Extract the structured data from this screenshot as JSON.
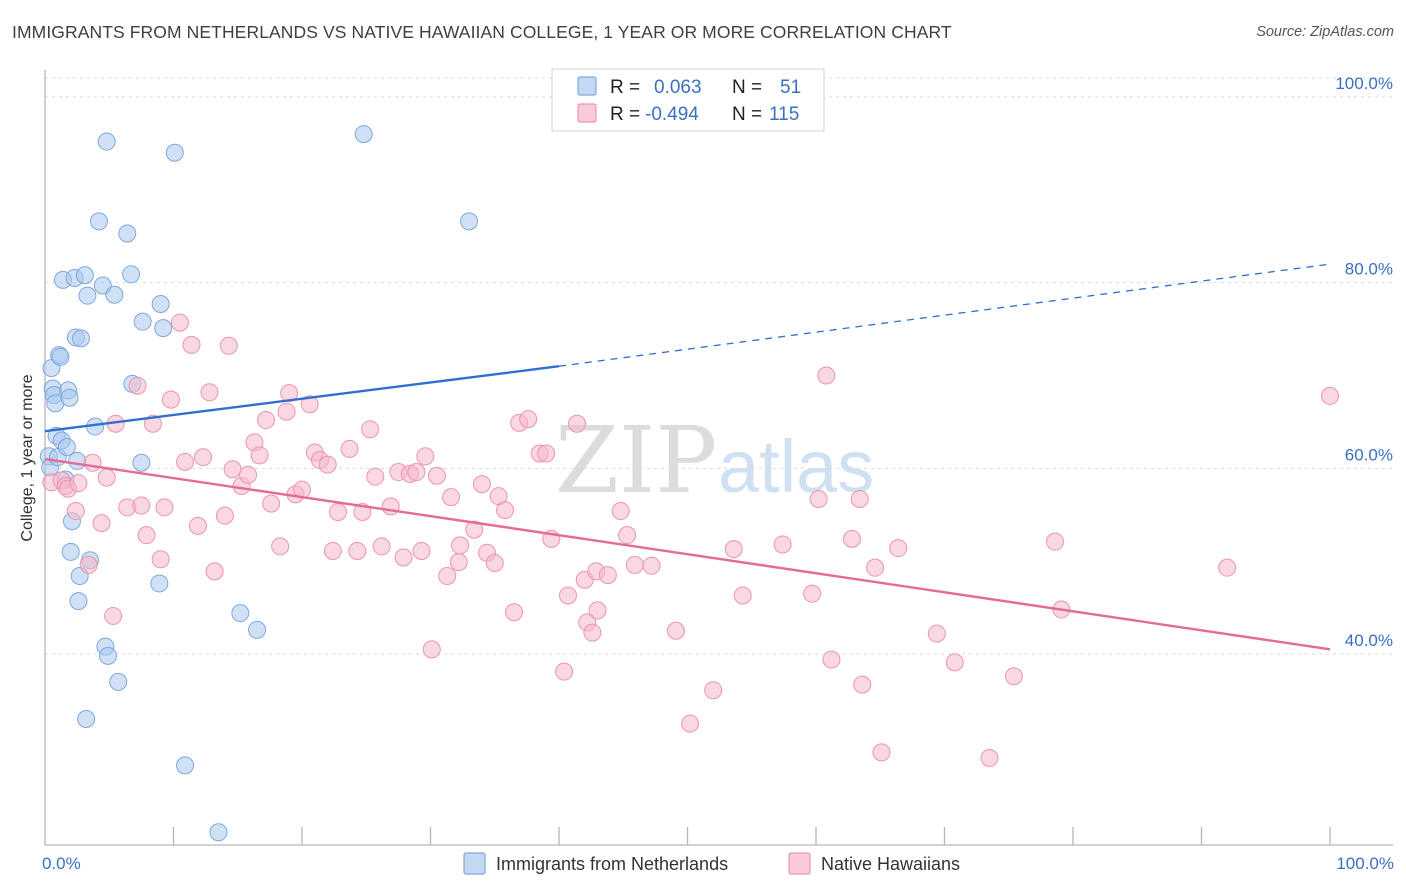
{
  "title": "IMMIGRANTS FROM NETHERLANDS VS NATIVE HAWAIIAN COLLEGE, 1 YEAR OR MORE CORRELATION CHART",
  "source": "Source: ZipAtlas.com",
  "watermark": {
    "zip": "ZIP",
    "atlas": "atlas"
  },
  "colors": {
    "blue_fill": "#a9c8ef",
    "blue_stroke": "#7fa8dc",
    "blue_line": "#2f6fcf",
    "pink_fill": "#f6b8cb",
    "pink_stroke": "#ec94b0",
    "pink_line": "#e46b97",
    "accent_text": "#3a70c2",
    "grid": "#d9d9d9"
  },
  "legend": {
    "rows": [
      {
        "r_label": "R =",
        "r_value": "0.063",
        "n_label": "N =",
        "n_value": "51"
      },
      {
        "r_label": "R =",
        "r_value": "-0.494",
        "n_label": "N =",
        "n_value": "115"
      }
    ]
  },
  "bottom_legend": [
    "Immigrants from Netherlands",
    "Native Hawaiians"
  ],
  "chart_data": {
    "type": "scatter",
    "title": "IMMIGRANTS FROM NETHERLANDS VS NATIVE HAWAIIAN COLLEGE, 1 YEAR OR MORE CORRELATION CHART",
    "xlabel": "",
    "ylabel": "College, 1 year or more",
    "xlim": [
      0,
      100
    ],
    "ylim": [
      22,
      104
    ],
    "x_tick_labels": [
      "0.0%",
      "100.0%"
    ],
    "y_ticks": [
      40,
      60,
      80,
      100
    ],
    "y_tick_labels": [
      "40.0%",
      "60.0%",
      "80.0%",
      "100.0%"
    ],
    "series": [
      {
        "name": "Immigrants from Netherlands",
        "R": 0.063,
        "N": 51,
        "trend": {
          "x0": 0,
          "y0": 64.0,
          "x1": 40,
          "y1": 71.0,
          "dash_to_x": 100,
          "dash_to_y": 82.0
        },
        "points": [
          [
            0.3,
            61.3
          ],
          [
            0.4,
            60.1
          ],
          [
            0.5,
            70.8
          ],
          [
            0.6,
            68.6
          ],
          [
            0.7,
            67.9
          ],
          [
            0.8,
            67.0
          ],
          [
            0.9,
            63.5
          ],
          [
            1.0,
            61.2
          ],
          [
            1.1,
            72.2
          ],
          [
            1.2,
            72.0
          ],
          [
            1.3,
            63.0
          ],
          [
            1.4,
            80.3
          ],
          [
            1.6,
            58.8
          ],
          [
            1.7,
            62.3
          ],
          [
            1.8,
            68.4
          ],
          [
            1.9,
            67.6
          ],
          [
            2.0,
            51.0
          ],
          [
            2.1,
            54.3
          ],
          [
            2.3,
            80.5
          ],
          [
            2.4,
            74.1
          ],
          [
            2.5,
            60.8
          ],
          [
            2.6,
            45.7
          ],
          [
            2.7,
            48.4
          ],
          [
            2.8,
            74.0
          ],
          [
            3.1,
            80.8
          ],
          [
            3.2,
            33.0
          ],
          [
            3.3,
            78.6
          ],
          [
            3.5,
            50.1
          ],
          [
            3.9,
            64.5
          ],
          [
            4.2,
            86.6
          ],
          [
            4.5,
            79.7
          ],
          [
            4.7,
            40.8
          ],
          [
            4.8,
            95.2
          ],
          [
            4.9,
            39.8
          ],
          [
            5.4,
            78.7
          ],
          [
            5.7,
            37.0
          ],
          [
            6.4,
            85.3
          ],
          [
            6.7,
            80.9
          ],
          [
            6.8,
            69.1
          ],
          [
            7.5,
            60.6
          ],
          [
            7.6,
            75.8
          ],
          [
            8.9,
            47.6
          ],
          [
            9.0,
            77.7
          ],
          [
            9.2,
            75.1
          ],
          [
            10.1,
            94.0
          ],
          [
            10.9,
            28.0
          ],
          [
            13.5,
            20.8
          ],
          [
            15.2,
            44.4
          ],
          [
            16.5,
            42.6
          ],
          [
            24.8,
            96.0
          ],
          [
            33.0,
            86.6
          ]
        ]
      },
      {
        "name": "Native Hawaiians",
        "R": -0.494,
        "N": 115,
        "trend": {
          "x0": 0,
          "y0": 61.0,
          "x1": 100,
          "y1": 40.5
        },
        "points": [
          [
            0.5,
            58.5
          ],
          [
            1.3,
            58.7
          ],
          [
            1.6,
            58.1
          ],
          [
            1.8,
            57.8
          ],
          [
            2.4,
            55.4
          ],
          [
            2.6,
            58.4
          ],
          [
            3.4,
            49.6
          ],
          [
            3.7,
            60.6
          ],
          [
            4.4,
            54.1
          ],
          [
            4.8,
            59.0
          ],
          [
            5.3,
            44.1
          ],
          [
            5.5,
            64.8
          ],
          [
            6.4,
            55.8
          ],
          [
            7.2,
            68.9
          ],
          [
            7.5,
            56.0
          ],
          [
            7.9,
            52.8
          ],
          [
            8.4,
            64.8
          ],
          [
            9.0,
            50.2
          ],
          [
            9.3,
            55.8
          ],
          [
            9.8,
            67.4
          ],
          [
            10.5,
            75.7
          ],
          [
            10.9,
            60.7
          ],
          [
            11.4,
            73.3
          ],
          [
            11.9,
            53.8
          ],
          [
            12.3,
            61.2
          ],
          [
            12.8,
            68.2
          ],
          [
            13.2,
            48.9
          ],
          [
            14.0,
            54.9
          ],
          [
            14.3,
            73.2
          ],
          [
            14.6,
            59.9
          ],
          [
            15.3,
            58.1
          ],
          [
            15.8,
            59.3
          ],
          [
            16.3,
            62.8
          ],
          [
            16.7,
            61.4
          ],
          [
            17.2,
            65.2
          ],
          [
            17.6,
            56.2
          ],
          [
            18.3,
            51.6
          ],
          [
            18.8,
            66.1
          ],
          [
            19.0,
            68.1
          ],
          [
            19.5,
            57.2
          ],
          [
            20.0,
            57.7
          ],
          [
            20.6,
            66.9
          ],
          [
            21.0,
            61.7
          ],
          [
            21.4,
            60.9
          ],
          [
            22.0,
            60.4
          ],
          [
            22.4,
            51.1
          ],
          [
            22.8,
            55.3
          ],
          [
            23.7,
            62.1
          ],
          [
            24.3,
            51.1
          ],
          [
            24.7,
            55.3
          ],
          [
            25.3,
            64.2
          ],
          [
            25.7,
            59.1
          ],
          [
            26.2,
            51.6
          ],
          [
            26.9,
            55.9
          ],
          [
            27.5,
            59.6
          ],
          [
            27.9,
            50.4
          ],
          [
            28.4,
            59.4
          ],
          [
            28.9,
            59.6
          ],
          [
            29.3,
            51.1
          ],
          [
            29.6,
            61.3
          ],
          [
            30.1,
            40.5
          ],
          [
            30.5,
            59.2
          ],
          [
            31.3,
            48.4
          ],
          [
            31.6,
            56.9
          ],
          [
            32.2,
            49.9
          ],
          [
            32.3,
            51.7
          ],
          [
            33.4,
            53.4
          ],
          [
            34.0,
            58.3
          ],
          [
            34.4,
            50.9
          ],
          [
            35.0,
            49.8
          ],
          [
            35.3,
            57.0
          ],
          [
            35.8,
            55.5
          ],
          [
            36.5,
            44.5
          ],
          [
            36.9,
            64.9
          ],
          [
            37.6,
            65.3
          ],
          [
            38.5,
            61.6
          ],
          [
            39.0,
            61.6
          ],
          [
            39.4,
            52.4
          ],
          [
            40.4,
            38.1
          ],
          [
            40.7,
            46.3
          ],
          [
            41.4,
            64.8
          ],
          [
            42.0,
            48.0
          ],
          [
            42.2,
            43.4
          ],
          [
            42.6,
            42.3
          ],
          [
            42.9,
            48.9
          ],
          [
            43.0,
            44.7
          ],
          [
            43.8,
            48.5
          ],
          [
            44.8,
            55.4
          ],
          [
            45.3,
            52.8
          ],
          [
            45.9,
            49.6
          ],
          [
            47.2,
            49.5
          ],
          [
            49.1,
            42.5
          ],
          [
            50.2,
            32.5
          ],
          [
            52.0,
            36.1
          ],
          [
            53.6,
            51.3
          ],
          [
            54.3,
            46.3
          ],
          [
            57.4,
            51.8
          ],
          [
            59.7,
            46.5
          ],
          [
            60.2,
            56.7
          ],
          [
            60.8,
            70.0
          ],
          [
            61.2,
            39.4
          ],
          [
            62.8,
            52.4
          ],
          [
            63.4,
            56.7
          ],
          [
            63.6,
            36.7
          ],
          [
            64.6,
            49.3
          ],
          [
            65.1,
            29.4
          ],
          [
            66.4,
            51.4
          ],
          [
            69.4,
            42.2
          ],
          [
            70.8,
            39.1
          ],
          [
            73.5,
            28.8
          ],
          [
            75.4,
            37.6
          ],
          [
            78.6,
            52.1
          ],
          [
            79.1,
            44.8
          ],
          [
            92.0,
            49.3
          ],
          [
            100.0,
            67.8
          ]
        ]
      }
    ]
  }
}
